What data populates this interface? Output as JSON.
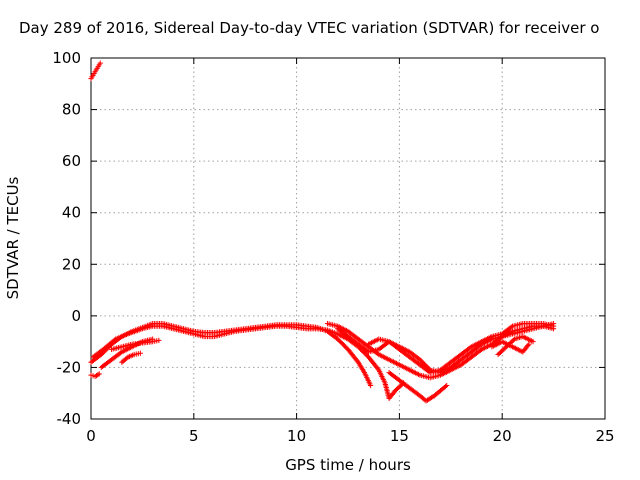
{
  "chart_data": {
    "type": "scatter",
    "title": "Day 289 of 2016, Sidereal Day-to-day VTEC variation (SDTVAR) for receiver o",
    "xlabel": "GPS time / hours",
    "ylabel": "SDTVAR / TECUs",
    "xlim": [
      0,
      25
    ],
    "ylim": [
      -40,
      100
    ],
    "xticks": [
      0,
      5,
      10,
      15,
      20,
      25
    ],
    "yticks": [
      -40,
      -20,
      0,
      20,
      40,
      60,
      80,
      100
    ],
    "grid": true,
    "legend": "none",
    "marker": "plus",
    "series": [
      {
        "color": "#ff0000",
        "traces": [
          [
            [
              0.0,
              92
            ],
            [
              0.15,
              94
            ],
            [
              0.3,
              96
            ],
            [
              0.45,
              98
            ]
          ],
          [
            [
              0.0,
              -23
            ],
            [
              0.2,
              -23.5
            ],
            [
              0.4,
              -22.5
            ]
          ],
          [
            [
              0.0,
              -18
            ],
            [
              0.5,
              -15
            ],
            [
              1.0,
              -11
            ],
            [
              1.5,
              -8
            ],
            [
              2.0,
              -6
            ],
            [
              2.5,
              -4.5
            ],
            [
              3.0,
              -3
            ],
            [
              3.5,
              -3
            ],
            [
              4.0,
              -4
            ],
            [
              4.5,
              -5
            ],
            [
              5.0,
              -6
            ],
            [
              5.5,
              -6.5
            ],
            [
              6.0,
              -6.5
            ],
            [
              6.5,
              -6
            ],
            [
              7.0,
              -5.5
            ],
            [
              7.5,
              -5
            ],
            [
              8.0,
              -4.5
            ],
            [
              8.5,
              -4
            ],
            [
              9.0,
              -3.5
            ],
            [
              9.5,
              -3.5
            ],
            [
              10.0,
              -3.5
            ],
            [
              10.5,
              -4
            ],
            [
              11.0,
              -4.5
            ],
            [
              11.5,
              -6
            ],
            [
              12.0,
              -9
            ],
            [
              12.5,
              -13
            ],
            [
              13.0,
              -18
            ],
            [
              13.3,
              -22
            ],
            [
              13.6,
              -27
            ]
          ],
          [
            [
              0.1,
              -16
            ],
            [
              0.6,
              -13
            ],
            [
              1.2,
              -9
            ],
            [
              1.8,
              -7
            ],
            [
              2.5,
              -5
            ],
            [
              3.0,
              -4
            ],
            [
              3.5,
              -4
            ],
            [
              4.0,
              -5
            ],
            [
              4.5,
              -6
            ],
            [
              5.0,
              -7
            ],
            [
              5.5,
              -8
            ],
            [
              6.0,
              -8
            ],
            [
              6.5,
              -7
            ],
            [
              7.0,
              -6
            ],
            [
              7.5,
              -5.5
            ],
            [
              8.0,
              -5
            ],
            [
              8.5,
              -4.5
            ],
            [
              9.0,
              -4
            ],
            [
              9.5,
              -4
            ],
            [
              10.0,
              -4.5
            ],
            [
              10.5,
              -5
            ],
            [
              11.0,
              -5
            ],
            [
              11.5,
              -5.5
            ],
            [
              12.0,
              -7
            ],
            [
              12.5,
              -9
            ],
            [
              13.0,
              -12
            ],
            [
              13.5,
              -16
            ],
            [
              14.0,
              -21
            ],
            [
              14.3,
              -26
            ],
            [
              14.5,
              -32
            ],
            [
              14.8,
              -29
            ],
            [
              15.2,
              -26
            ]
          ],
          [
            [
              0.5,
              -20
            ],
            [
              1.0,
              -17
            ],
            [
              1.5,
              -14
            ],
            [
              2.0,
              -12
            ],
            [
              2.5,
              -10
            ],
            [
              3.0,
              -9
            ]
          ],
          [
            [
              1.0,
              -13
            ],
            [
              1.5,
              -12
            ],
            [
              2.0,
              -11
            ],
            [
              2.5,
              -10.5
            ],
            [
              3.0,
              -10
            ],
            [
              3.3,
              -9.5
            ]
          ],
          [
            [
              1.5,
              -18
            ],
            [
              1.8,
              -16
            ],
            [
              2.1,
              -15
            ],
            [
              2.4,
              -14.5
            ]
          ],
          [
            [
              11.5,
              -3
            ],
            [
              12.0,
              -4
            ],
            [
              12.5,
              -6
            ],
            [
              13.0,
              -9
            ],
            [
              13.5,
              -12
            ],
            [
              14.0,
              -15
            ],
            [
              14.5,
              -17
            ],
            [
              15.0,
              -19
            ],
            [
              15.5,
              -21
            ],
            [
              16.0,
              -23
            ],
            [
              16.5,
              -24
            ],
            [
              17.0,
              -23
            ],
            [
              17.5,
              -21
            ],
            [
              18.0,
              -19
            ],
            [
              18.5,
              -16
            ],
            [
              19.0,
              -13
            ],
            [
              19.5,
              -11
            ],
            [
              20.0,
              -8
            ],
            [
              20.5,
              -6
            ],
            [
              21.0,
              -5
            ],
            [
              21.5,
              -4
            ],
            [
              22.0,
              -4
            ],
            [
              22.5,
              -5
            ]
          ],
          [
            [
              12.0,
              -5
            ],
            [
              12.5,
              -8
            ],
            [
              13.0,
              -11
            ],
            [
              13.5,
              -14
            ],
            [
              14.0,
              -13
            ],
            [
              14.5,
              -10
            ],
            [
              15.0,
              -12
            ],
            [
              15.5,
              -14
            ],
            [
              16.0,
              -17
            ],
            [
              16.5,
              -21
            ],
            [
              17.0,
              -22
            ],
            [
              17.5,
              -20
            ],
            [
              18.0,
              -17
            ],
            [
              18.5,
              -14
            ],
            [
              19.0,
              -11
            ],
            [
              19.5,
              -9
            ],
            [
              20.0,
              -8
            ],
            [
              20.5,
              -7
            ],
            [
              21.0,
              -6
            ],
            [
              21.5,
              -5
            ],
            [
              22.0,
              -4
            ],
            [
              22.5,
              -3
            ]
          ],
          [
            [
              13.5,
              -11
            ],
            [
              14.0,
              -9
            ],
            [
              14.5,
              -10
            ],
            [
              15.0,
              -13
            ],
            [
              15.5,
              -16
            ],
            [
              16.0,
              -19
            ],
            [
              16.5,
              -22
            ],
            [
              17.0,
              -21
            ],
            [
              17.5,
              -18
            ],
            [
              18.0,
              -15
            ],
            [
              18.5,
              -12
            ],
            [
              19.0,
              -10
            ],
            [
              19.5,
              -8
            ],
            [
              20.0,
              -7
            ],
            [
              20.5,
              -4
            ],
            [
              21.0,
              -3
            ],
            [
              21.5,
              -3
            ],
            [
              22.0,
              -3
            ],
            [
              22.5,
              -4
            ]
          ],
          [
            [
              14.5,
              -22
            ],
            [
              15.0,
              -25
            ],
            [
              15.5,
              -28
            ],
            [
              16.0,
              -31
            ],
            [
              16.3,
              -33
            ],
            [
              16.7,
              -31
            ],
            [
              17.0,
              -29
            ],
            [
              17.3,
              -27
            ]
          ],
          [
            [
              19.5,
              -12
            ],
            [
              20.0,
              -10
            ],
            [
              20.5,
              -12
            ],
            [
              21.0,
              -14
            ],
            [
              21.3,
              -11
            ]
          ],
          [
            [
              19.8,
              -15
            ],
            [
              20.2,
              -12
            ],
            [
              20.6,
              -9
            ],
            [
              21.0,
              -8
            ],
            [
              21.5,
              -10
            ]
          ]
        ]
      }
    ]
  }
}
